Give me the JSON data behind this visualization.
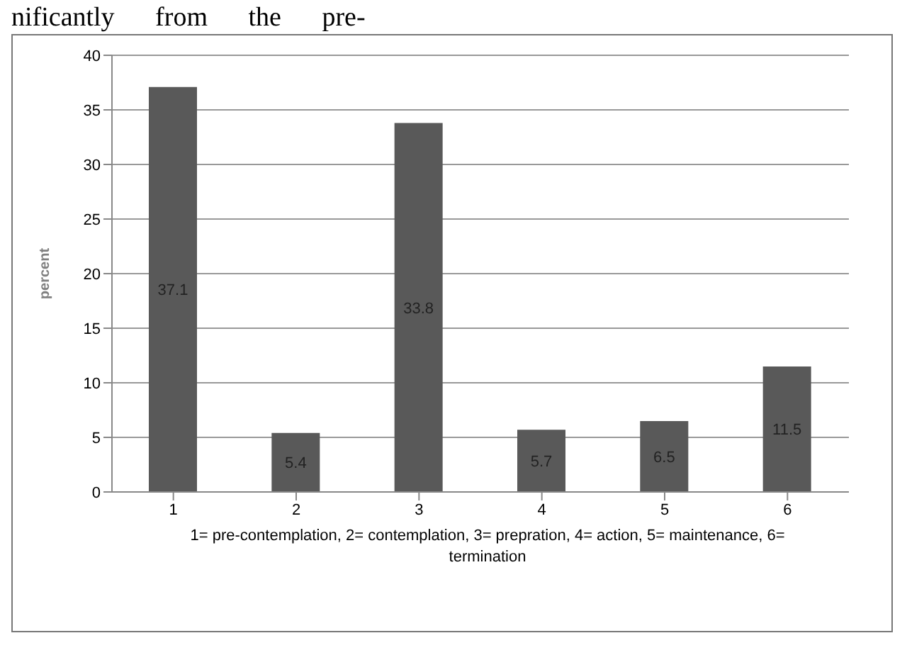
{
  "chart_data": {
    "type": "bar",
    "categories": [
      "1",
      "2",
      "3",
      "4",
      "5",
      "6"
    ],
    "values": [
      37.1,
      5.4,
      33.8,
      5.7,
      6.5,
      11.5
    ],
    "color": "#595959",
    "ylim": [
      0,
      40
    ],
    "yticks": [
      0,
      5,
      10,
      15,
      20,
      25,
      30,
      35,
      40
    ],
    "grid": "y",
    "data_labels": true,
    "ylabel": "percent",
    "xlabel": "1= pre-contemplation, 2= contemplation, 3= prepration, 4= action, 5= maintenance, 6= termination",
    "annotations": [
      "nificantly from the pre-"
    ]
  }
}
